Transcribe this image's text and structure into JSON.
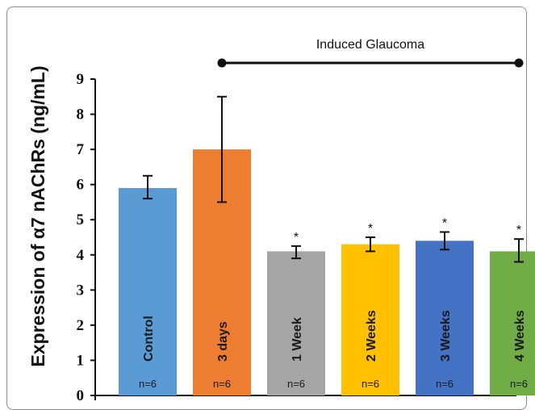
{
  "chart_data": {
    "type": "bar",
    "categories": [
      "Control",
      "3 days",
      "1 Week",
      "2 Weeks",
      "3 Weeks",
      "4 Weeks"
    ],
    "values": [
      5.9,
      7.0,
      4.1,
      4.3,
      4.4,
      4.1
    ],
    "error_low": [
      5.6,
      5.5,
      3.9,
      4.1,
      4.15,
      3.8
    ],
    "error_high": [
      6.25,
      8.5,
      4.25,
      4.5,
      4.65,
      4.45
    ],
    "colors": [
      "#5b9bd5",
      "#ed7d31",
      "#a5a5a5",
      "#ffc000",
      "#4472c4",
      "#70ad47"
    ],
    "n_labels": [
      "n=6",
      "n=6",
      "n=6",
      "n=6",
      "n=6",
      "n=6"
    ],
    "significance": [
      "",
      "",
      "*",
      "*",
      "*",
      "*"
    ],
    "ylabel": "Expression of α7 nAChRs (ng/mL)",
    "ylim": [
      0,
      9
    ],
    "yticks": [
      "0",
      "1",
      "2",
      "3",
      "4",
      "5",
      "6",
      "7",
      "8",
      "9"
    ],
    "annotation": {
      "text": "Induced Glaucoma",
      "from_category": "3 days",
      "to_category": "4 Weeks"
    },
    "grid": false,
    "legend": "none"
  }
}
